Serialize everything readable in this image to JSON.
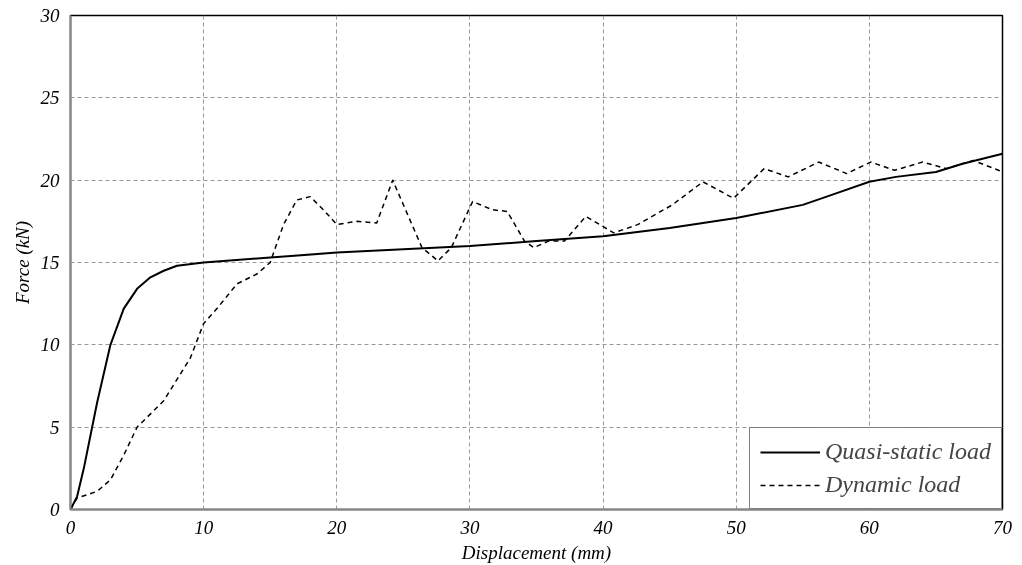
{
  "chart_data": {
    "type": "line",
    "xlabel": "Displacement (mm)",
    "ylabel": "Force (kN)",
    "xlim": [
      0,
      70
    ],
    "ylim": [
      0,
      30
    ],
    "xticks": [
      0,
      10,
      20,
      30,
      40,
      50,
      60,
      70
    ],
    "yticks": [
      0,
      5,
      10,
      15,
      20,
      25,
      30
    ],
    "grid": true,
    "legend": "bottom right",
    "series": [
      {
        "name": "Quasi-static load",
        "color": "#000000",
        "line_style": "solid",
        "x": [
          0,
          0.5,
          1,
          2,
          3,
          4,
          5,
          6,
          7,
          8,
          10,
          15,
          20,
          25,
          30,
          35,
          40,
          45,
          50,
          55,
          57.5,
          60,
          62,
          65,
          67,
          70
        ],
        "values": [
          0,
          0.8,
          2.5,
          6.5,
          10,
          12.2,
          13.4,
          14.1,
          14.5,
          14.8,
          15,
          15.3,
          15.6,
          15.8,
          16,
          16.3,
          16.6,
          17.1,
          17.7,
          18.5,
          19.2,
          19.9,
          20.2,
          20.5,
          21,
          21.6
        ]
      },
      {
        "name": "Dynamic load",
        "color": "#000000",
        "line_style": "dashed",
        "x": [
          0,
          0.5,
          2,
          3,
          4,
          5,
          7,
          9,
          10,
          11,
          12.5,
          14,
          15,
          16,
          17,
          18,
          19,
          20,
          21.5,
          23,
          24.2,
          26.4,
          27.6,
          28.6,
          30.2,
          31.7,
          32.8,
          34.1,
          34.8,
          35.9,
          37.1,
          38.7,
          40.8,
          42.6,
          45.2,
          47.5,
          49.8,
          52.1,
          53.9,
          56.2,
          58.3,
          60.1,
          61.9,
          64,
          65.8,
          67.8,
          69.7,
          70
        ],
        "values": [
          0,
          0.7,
          1.1,
          1.8,
          3.3,
          5,
          6.6,
          9.2,
          11.3,
          12.2,
          13.7,
          14.3,
          15,
          17.3,
          18.8,
          19,
          18.2,
          17.3,
          17.5,
          17.4,
          20,
          15.9,
          15.1,
          15.9,
          18.7,
          18.2,
          18.1,
          16.3,
          15.9,
          16.3,
          16.3,
          17.8,
          16.8,
          17.3,
          18.5,
          19.9,
          18.9,
          20.7,
          20.2,
          21.1,
          20.4,
          21.1,
          20.6,
          21.1,
          20.7,
          21.2,
          20.6,
          20.5
        ]
      }
    ]
  }
}
